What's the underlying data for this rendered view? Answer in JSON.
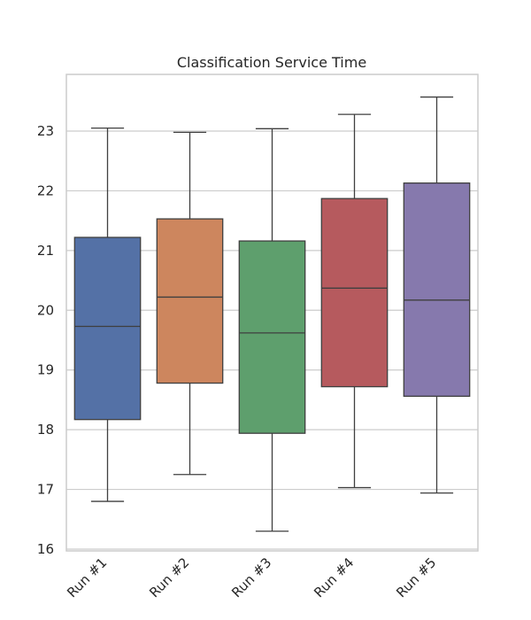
{
  "chart_data": {
    "type": "box",
    "title": "Classification Service Time",
    "xlabel": "",
    "ylabel": "",
    "ylim": [
      16,
      24
    ],
    "yticks": [
      16,
      17,
      18,
      19,
      20,
      21,
      22,
      23
    ],
    "grid": true,
    "categories": [
      "Run #1",
      "Run #2",
      "Run #3",
      "Run #4",
      "Run #5"
    ],
    "boxes": [
      {
        "category": "Run #1",
        "min": 16.8,
        "q1": 18.17,
        "median": 19.73,
        "q3": 21.22,
        "max": 23.05,
        "color": "#5471a6"
      },
      {
        "category": "Run #2",
        "min": 17.25,
        "q1": 18.78,
        "median": 20.22,
        "q3": 21.53,
        "max": 22.98,
        "color": "#cd865e"
      },
      {
        "category": "Run #3",
        "min": 16.3,
        "q1": 17.94,
        "median": 19.62,
        "q3": 21.16,
        "max": 23.04,
        "color": "#5e9f6d"
      },
      {
        "category": "Run #4",
        "min": 17.03,
        "q1": 18.72,
        "median": 20.37,
        "q3": 21.87,
        "max": 23.28,
        "color": "#b65a5e"
      },
      {
        "category": "Run #5",
        "min": 16.94,
        "q1": 18.56,
        "median": 20.17,
        "q3": 22.13,
        "max": 23.57,
        "color": "#8679ad"
      }
    ]
  }
}
